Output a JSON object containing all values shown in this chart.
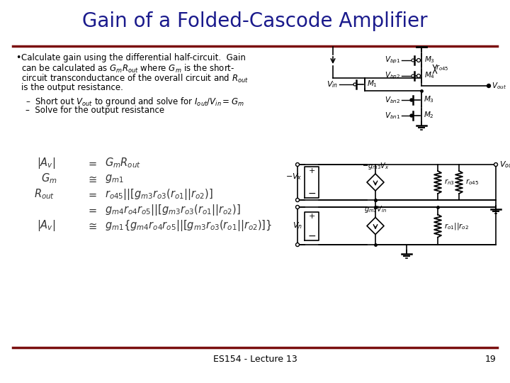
{
  "title": "Gain of a Folded-Cascode Amplifier",
  "title_color": "#1a1a8c",
  "title_fontsize": 20,
  "bg_color": "#FFFFFF",
  "separator_color": "#7B1010",
  "footer_text": "ES154 - Lecture 13",
  "footer_page": "19"
}
